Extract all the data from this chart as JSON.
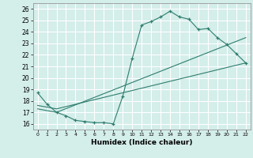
{
  "xlabel": "Humidex (Indice chaleur)",
  "bg_color": "#d4eeea",
  "grid_color": "#ffffff",
  "line_color": "#2e7d6e",
  "xlim": [
    -0.5,
    22.5
  ],
  "ylim": [
    15.5,
    26.5
  ],
  "xticks": [
    0,
    1,
    2,
    3,
    4,
    5,
    6,
    7,
    8,
    9,
    10,
    11,
    12,
    13,
    14,
    15,
    16,
    17,
    18,
    19,
    20,
    21,
    22
  ],
  "yticks": [
    16,
    17,
    18,
    19,
    20,
    21,
    22,
    23,
    24,
    25,
    26
  ],
  "line1_x": [
    0,
    1,
    2,
    3,
    4,
    5,
    6,
    7,
    8,
    9,
    10,
    11,
    12,
    13,
    14,
    15,
    16,
    17,
    18,
    19,
    20,
    21,
    22
  ],
  "line1_y": [
    18.7,
    17.7,
    17.0,
    16.7,
    16.3,
    16.2,
    16.1,
    16.1,
    16.0,
    18.4,
    21.7,
    24.6,
    24.9,
    25.3,
    25.8,
    25.3,
    25.1,
    24.2,
    24.3,
    23.5,
    22.9,
    22.1,
    21.3
  ],
  "line2_x": [
    0,
    2,
    22
  ],
  "line2_y": [
    17.3,
    17.0,
    23.5
  ],
  "line3_x": [
    0,
    2,
    22
  ],
  "line3_y": [
    17.6,
    17.3,
    21.3
  ]
}
